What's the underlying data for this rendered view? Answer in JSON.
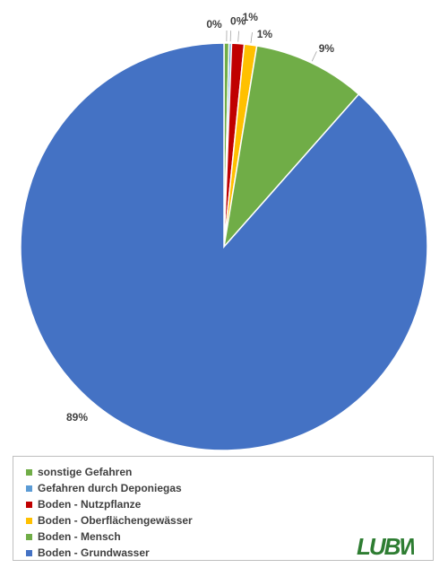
{
  "chart_data": {
    "type": "pie",
    "categories": [
      "sonstige Gefahren",
      "Gefahren durch Deponiegas",
      "Boden - Nutzpflanze",
      "Boden - Oberflächengewässer",
      "Boden - Mensch",
      "Boden - Grundwasser"
    ],
    "values": [
      0.4,
      0.2,
      1,
      1,
      9,
      89
    ],
    "data_labels": [
      "0%",
      "0%",
      "1%",
      "1%",
      "9%",
      "89%"
    ],
    "colors": [
      "#70ad47",
      "#5b9bd5",
      "#c00000",
      "#ffc000",
      "#70ad47",
      "#4472c4"
    ],
    "legend_position": "bottom",
    "title": "",
    "xlabel": "",
    "ylabel": ""
  },
  "logo": {
    "text": "LUBW",
    "color": "#2e7d32"
  }
}
